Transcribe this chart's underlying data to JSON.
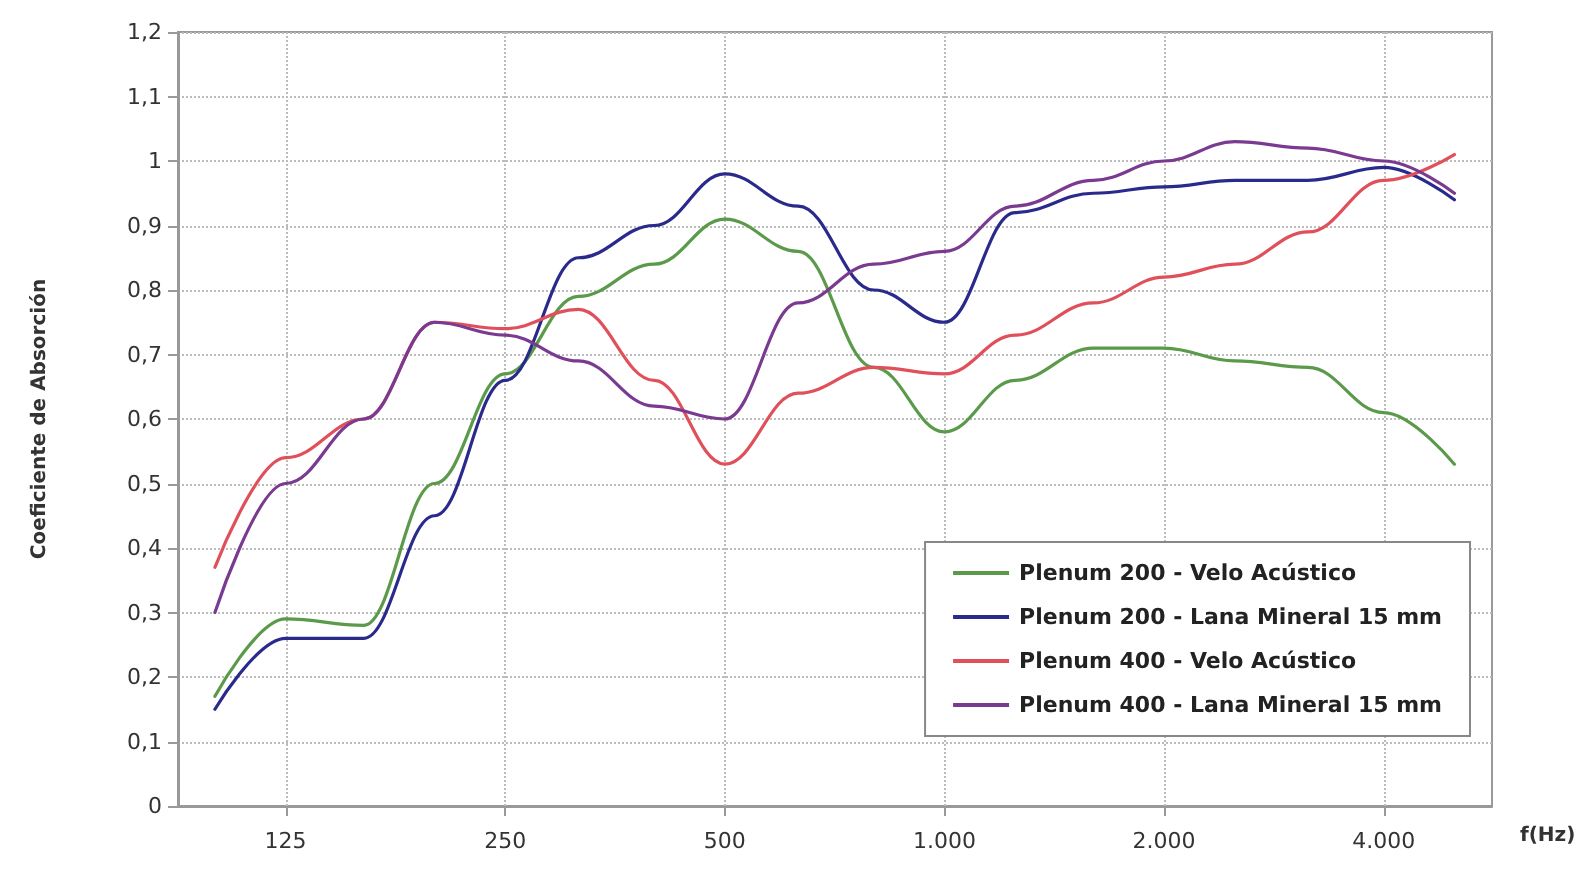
{
  "chart_data": {
    "type": "line",
    "xlabel": "f(Hz)",
    "ylabel": "Coeficiente de Absorción",
    "x": [
      100,
      125,
      160,
      200,
      250,
      315,
      400,
      500,
      630,
      800,
      1000,
      1250,
      1600,
      2000,
      2500,
      3150,
      4000,
      5000
    ],
    "series": [
      {
        "name": "Plenum 200 - Velo Acústico",
        "color": "#5a9a4a",
        "values": [
          0.17,
          0.29,
          0.28,
          0.5,
          0.67,
          0.79,
          0.84,
          0.91,
          0.86,
          0.68,
          0.58,
          0.66,
          0.71,
          0.71,
          0.69,
          0.68,
          0.61,
          0.53
        ]
      },
      {
        "name": "Plenum 200 - Lana Mineral 15 mm",
        "color": "#2a2a8c",
        "values": [
          0.15,
          0.26,
          0.26,
          0.45,
          0.66,
          0.85,
          0.9,
          0.98,
          0.93,
          0.8,
          0.75,
          0.92,
          0.95,
          0.96,
          0.97,
          0.97,
          0.99,
          0.94
        ]
      },
      {
        "name": "Plenum 400 - Velo Acústico",
        "color": "#e0505a",
        "values": [
          0.37,
          0.54,
          0.6,
          0.75,
          0.74,
          0.77,
          0.66,
          0.53,
          0.64,
          0.68,
          0.67,
          0.73,
          0.78,
          0.82,
          0.84,
          0.89,
          0.97,
          1.01
        ]
      },
      {
        "name": "Plenum 400 - Lana Mineral 15 mm",
        "color": "#7a3a90",
        "values": [
          0.3,
          0.5,
          0.6,
          0.75,
          0.73,
          0.69,
          0.62,
          0.6,
          0.78,
          0.84,
          0.86,
          0.93,
          0.97,
          1.0,
          1.03,
          1.02,
          1.0,
          0.95
        ]
      }
    ],
    "log": "x",
    "xlim": [
      89,
      5630
    ],
    "xticks": [
      125,
      250,
      500,
      {
        "value": 1000,
        "label": "1.000"
      },
      {
        "value": 2000,
        "label": "2.000"
      },
      {
        "value": 4000,
        "label": "4.000"
      }
    ],
    "ylim": [
      0,
      1.2
    ],
    "yticks": [
      0,
      {
        "value": 0.1,
        "label": "0,1"
      },
      {
        "value": 0.2,
        "label": "0,2"
      },
      {
        "value": 0.3,
        "label": "0,3"
      },
      {
        "value": 0.4,
        "label": "0,4"
      },
      {
        "value": 0.5,
        "label": "0,5"
      },
      {
        "value": 0.6,
        "label": "0,6"
      },
      {
        "value": 0.7,
        "label": "0,7"
      },
      {
        "value": 0.8,
        "label": "0,8"
      },
      {
        "value": 0.9,
        "label": "0,9"
      },
      1,
      {
        "value": 1.1,
        "label": "1,1"
      },
      {
        "value": 1.2,
        "label": "1,2"
      }
    ],
    "grid": true,
    "legend": "bottom right",
    "marker": "none",
    "line_style": "solid"
  }
}
